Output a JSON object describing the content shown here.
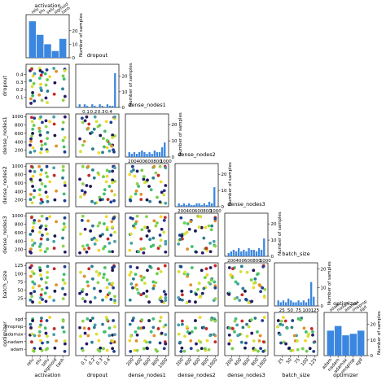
{
  "chart_data": {
    "type": "scatter",
    "variables": [
      {
        "key": "activation",
        "label": "activation",
        "kind": "categorical",
        "levels": [
          "relu",
          "elu",
          "selu",
          "sigmoid",
          "tanh"
        ],
        "ticks": [
          "relu",
          "elu",
          "selu",
          "sigmoid",
          "tanh"
        ]
      },
      {
        "key": "dropout",
        "label": "dropout",
        "kind": "numeric",
        "range": [
          0,
          0.5
        ],
        "ticks": [
          "0.1",
          "0.2",
          "0.3",
          "0.4"
        ],
        "tick_values": [
          0.1,
          0.2,
          0.3,
          0.4
        ]
      },
      {
        "key": "dense_nodes1",
        "label": "dense_nodes1",
        "kind": "numeric",
        "range": [
          100,
          1000
        ],
        "ticks": [
          "200",
          "400",
          "600",
          "800",
          "1000"
        ],
        "tick_values": [
          200,
          400,
          600,
          800,
          1000
        ]
      },
      {
        "key": "dense_nodes2",
        "label": "dense_nodes2",
        "kind": "numeric",
        "range": [
          100,
          1000
        ],
        "ticks": [
          "200",
          "400",
          "600",
          "800",
          "1000"
        ],
        "tick_values": [
          200,
          400,
          600,
          800,
          1000
        ]
      },
      {
        "key": "dense_nodes3",
        "label": "dense_nodes3",
        "kind": "numeric",
        "range": [
          100,
          1000
        ],
        "ticks": [
          "200",
          "400",
          "600",
          "800",
          "1000"
        ],
        "tick_values": [
          200,
          400,
          600,
          800,
          1000
        ]
      },
      {
        "key": "batch_size",
        "label": "batch_size",
        "kind": "numeric",
        "range": [
          10,
          125
        ],
        "ticks": [
          "25",
          "50",
          "75",
          "100",
          "125"
        ],
        "tick_values": [
          25,
          50,
          75,
          100,
          125
        ]
      },
      {
        "key": "optimizer",
        "label": "optimizer",
        "kind": "categorical",
        "levels": [
          "adam",
          "nadam",
          "adamax",
          "rmsprop",
          "sgd"
        ],
        "ticks": [
          "adam",
          "nadam",
          "adamax",
          "rmsprop",
          "sgd"
        ]
      }
    ],
    "histogram_ylabel": "Number of samples",
    "histogram_color": "#3b87e0",
    "histograms": {
      "activation": {
        "counts": [
          27,
          17,
          10,
          5,
          14
        ],
        "yticks": [
          "0",
          "10",
          "20"
        ],
        "ymax": 30
      },
      "dropout": {
        "counts": [
          2,
          0,
          2,
          1,
          0,
          2,
          1,
          0,
          2,
          1,
          0,
          2,
          1,
          1,
          22
        ],
        "yticks": [
          "0",
          "10",
          "20"
        ],
        "ymax": 26
      },
      "dense_nodes1": {
        "counts": [
          3,
          2,
          3,
          2,
          3,
          4,
          3,
          2,
          3,
          2,
          4,
          3,
          3,
          6,
          9
        ],
        "yticks": [
          "0",
          "10",
          "20"
        ],
        "ymax": 25
      },
      "dense_nodes2": {
        "counts": [
          2,
          1,
          2,
          1,
          2,
          1,
          1,
          2,
          2,
          1,
          2,
          1,
          3,
          2,
          12
        ],
        "yticks": [
          "0",
          "10",
          "20"
        ],
        "ymax": 25
      },
      "dense_nodes3": {
        "counts": [
          2,
          3,
          4,
          3,
          5,
          3,
          4,
          3,
          5,
          4,
          4,
          3,
          5,
          4,
          11
        ],
        "yticks": [
          "0",
          "10",
          "20"
        ],
        "ymax": 25
      },
      "batch_size": {
        "counts": [
          3,
          2,
          3,
          2,
          4,
          3,
          2,
          2,
          3,
          2,
          3,
          2,
          4,
          13,
          5
        ],
        "yticks": [
          "0",
          "10",
          "20"
        ],
        "ymax": 22
      },
      "optimizer": {
        "counts": [
          16,
          19,
          13,
          14,
          16
        ],
        "yticks": [
          "0",
          "10",
          "20"
        ],
        "ymax": 26
      }
    },
    "samples": [
      [
        0,
        0.45,
        320,
        880,
        150,
        118,
        2
      ],
      [
        0,
        0.05,
        960,
        420,
        890,
        46,
        0
      ],
      [
        0,
        0.32,
        150,
        210,
        560,
        20,
        3
      ],
      [
        0,
        0.12,
        700,
        970,
        300,
        75,
        4
      ],
      [
        0,
        0.48,
        540,
        640,
        980,
        31,
        1
      ],
      [
        0,
        0.24,
        880,
        130,
        420,
        106,
        2
      ],
      [
        0,
        0.38,
        260,
        760,
        720,
        58,
        0
      ],
      [
        0,
        0.08,
        410,
        330,
        210,
        92,
        3
      ],
      [
        0,
        0.47,
        980,
        990,
        960,
        124,
        1
      ],
      [
        0,
        0.16,
        600,
        520,
        640,
        14,
        4
      ],
      [
        0,
        0.41,
        180,
        870,
        350,
        69,
        2
      ],
      [
        0,
        0.28,
        790,
        260,
        830,
        100,
        0
      ],
      [
        0,
        0.02,
        470,
        690,
        120,
        40,
        3
      ],
      [
        1,
        0.43,
        860,
        150,
        540,
        22,
        1
      ],
      [
        1,
        0.19,
        230,
        910,
        760,
        84,
        4
      ],
      [
        1,
        0.35,
        650,
        440,
        270,
        118,
        2
      ],
      [
        1,
        0.06,
        320,
        580,
        990,
        52,
        0
      ],
      [
        1,
        0.48,
        950,
        320,
        610,
        12,
        3
      ],
      [
        1,
        0.27,
        140,
        800,
        180,
        96,
        1
      ],
      [
        1,
        0.13,
        720,
        990,
        880,
        63,
        2
      ],
      [
        1,
        0.39,
        410,
        210,
        450,
        36,
        4
      ],
      [
        1,
        0.45,
        560,
        670,
        720,
        110,
        0
      ],
      [
        1,
        0.22,
        990,
        120,
        330,
        27,
        3
      ],
      [
        2,
        0.33,
        480,
        750,
        220,
        88,
        0
      ],
      [
        2,
        0.09,
        900,
        380,
        680,
        16,
        2
      ],
      [
        2,
        0.46,
        210,
        990,
        930,
        57,
        4
      ],
      [
        2,
        0.18,
        620,
        160,
        440,
        122,
        1
      ],
      [
        2,
        0.41,
        350,
        520,
        150,
        41,
        3
      ],
      [
        2,
        0.26,
        760,
        840,
        760,
        73,
        0
      ],
      [
        2,
        0.03,
        170,
        270,
        570,
        104,
        2
      ],
      [
        2,
        0.37,
        880,
        630,
        980,
        29,
        4
      ],
      [
        3,
        0.44,
        300,
        410,
        860,
        66,
        1
      ],
      [
        3,
        0.14,
        820,
        780,
        230,
        115,
        3
      ],
      [
        3,
        0.29,
        550,
        200,
        520,
        47,
        0
      ],
      [
        3,
        0.48,
        990,
        960,
        390,
        19,
        2
      ],
      [
        4,
        0.38,
        430,
        900,
        670,
        81,
        4
      ],
      [
        4,
        0.11,
        990,
        540,
        140,
        37,
        1
      ],
      [
        4,
        0.47,
        160,
        180,
        950,
        121,
        0
      ],
      [
        4,
        0.21,
        700,
        720,
        470,
        55,
        3
      ],
      [
        4,
        0.34,
        280,
        340,
        810,
        98,
        2
      ],
      [
        4,
        0.06,
        860,
        990,
        280,
        24,
        4
      ],
      [
        4,
        0.45,
        500,
        610,
        730,
        71,
        1
      ]
    ],
    "sample_colors": [
      "#2b1b6b",
      "#1f3f8f",
      "#2a7f8e",
      "#3fbf6f",
      "#8fd14f",
      "#d6e039",
      "#f2d72a",
      "#e0902a",
      "#c42a2a",
      "#1a1a4f",
      "#47a0a8",
      "#6ccf4a"
    ]
  }
}
